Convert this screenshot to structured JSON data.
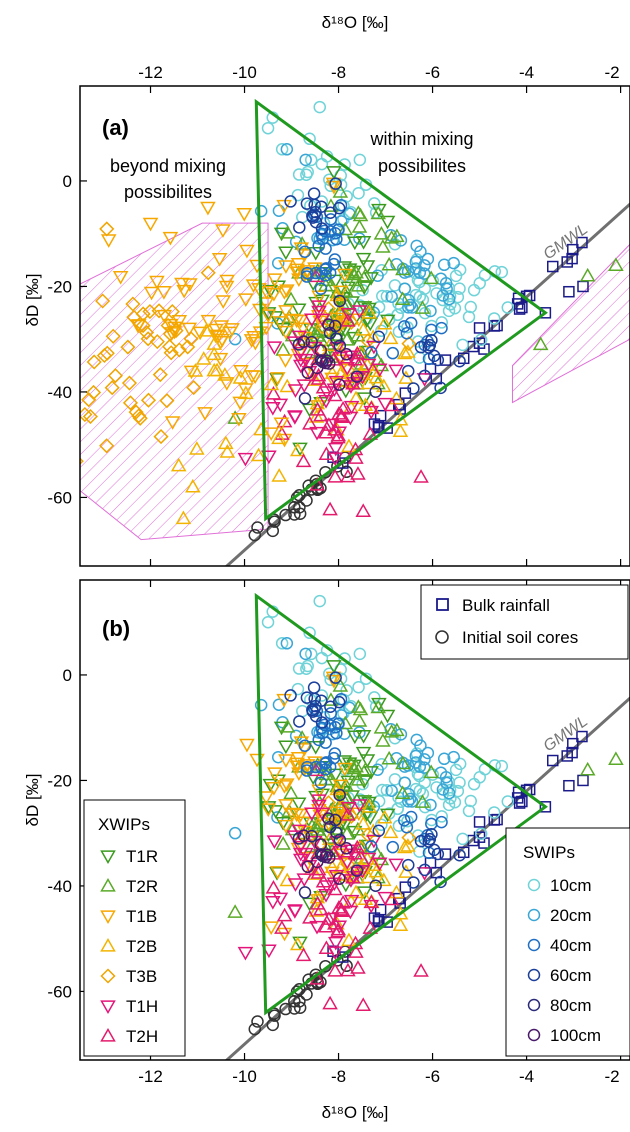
{
  "colors": {
    "T1R": "#3a9a1e",
    "T2R": "#5aaa28",
    "T1B": "#f7a800",
    "T2B": "#f2b400",
    "T3B": "#f0a500",
    "T1H": "#e3157a",
    "T2H": "#e41b6c",
    "10cm": "#6fd3d8",
    "20cm": "#3aa6d6",
    "40cm": "#1f6fc4",
    "60cm": "#1b3f9a",
    "80cm": "#2a2a7a",
    "100cm": "#4a1a6a",
    "bulk": "#1a1a8a",
    "initial": "#333333",
    "triangle": "#1f9a1f",
    "gmwl": "#707070",
    "hatch": "#e070d8"
  },
  "chart_data": [
    {
      "type": "scatter",
      "panel": "(a)",
      "xlabel": "δ¹⁸O [‰]",
      "ylabel": "δD [‰]",
      "xlim": [
        -13.5,
        -1.8
      ],
      "ylim": [
        -73,
        18
      ],
      "xticks": [
        "-12",
        "-10",
        "-8",
        "-6",
        "-4",
        "-2"
      ],
      "yticks": [
        "0",
        "-20",
        "-40",
        "-60"
      ],
      "annotations": [
        "beyond mixing possibilites",
        "within mixing possibilites",
        "GMWL"
      ],
      "mixing_triangle": [
        [
          -9.75,
          15
        ],
        [
          -3.6,
          -25
        ],
        [
          -9.55,
          -64
        ]
      ],
      "gmwl": {
        "slope": 8,
        "intercept": 10
      }
    },
    {
      "type": "scatter",
      "panel": "(b)",
      "xlabel": "δ¹⁸O [‰]",
      "ylabel": "δD [‰]",
      "xlim": [
        -13.5,
        -1.8
      ],
      "ylim": [
        -73,
        18
      ],
      "xticks": [
        "-12",
        "-10",
        "-8",
        "-6",
        "-4",
        "-2"
      ],
      "yticks": [
        "0",
        "-20",
        "-40",
        "-60"
      ],
      "annotations": [
        "GMWL"
      ],
      "mixing_triangle": [
        [
          -9.75,
          15
        ],
        [
          -3.6,
          -25
        ],
        [
          -9.55,
          -64
        ]
      ],
      "gmwl": {
        "slope": 8,
        "intercept": 10
      }
    }
  ],
  "legends": {
    "sources": {
      "items": [
        {
          "key": "bulk",
          "label": "Bulk rainfall"
        },
        {
          "key": "initial",
          "label": "Initial soil cores"
        }
      ]
    },
    "xwips": {
      "title": "XWIPs",
      "items": [
        {
          "key": "T1R",
          "label": "T1R",
          "marker": "tri-down"
        },
        {
          "key": "T2R",
          "label": "T2R",
          "marker": "tri-up"
        },
        {
          "key": "T1B",
          "label": "T1B",
          "marker": "tri-down"
        },
        {
          "key": "T2B",
          "label": "T2B",
          "marker": "tri-up"
        },
        {
          "key": "T3B",
          "label": "T3B",
          "marker": "diamond"
        },
        {
          "key": "T1H",
          "label": "T1H",
          "marker": "tri-down"
        },
        {
          "key": "T2H",
          "label": "T2H",
          "marker": "tri-up"
        }
      ]
    },
    "swips": {
      "title": "SWIPs",
      "items": [
        {
          "key": "10cm",
          "label": "10cm"
        },
        {
          "key": "20cm",
          "label": "20cm"
        },
        {
          "key": "40cm",
          "label": "40cm"
        },
        {
          "key": "60cm",
          "label": "60cm"
        },
        {
          "key": "80cm",
          "label": "80cm"
        },
        {
          "key": "100cm",
          "label": "100cm"
        }
      ]
    }
  }
}
